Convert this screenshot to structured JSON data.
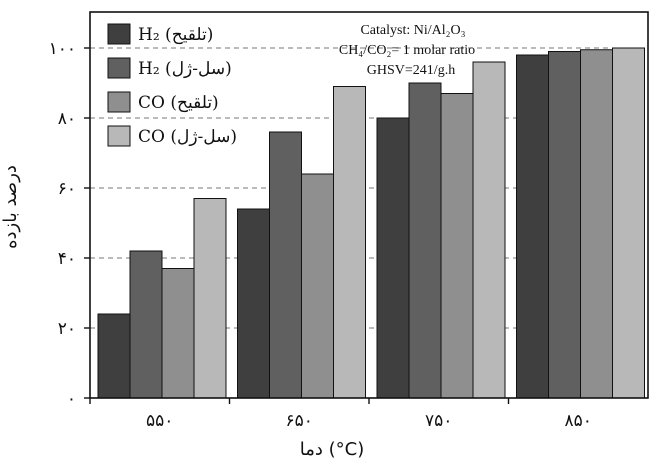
{
  "chart_data": {
    "type": "bar",
    "xlabel": "دما (°C)",
    "ylabel": "درصد بازده",
    "ylim": [
      0,
      100
    ],
    "yticks": [
      {
        "value": 0,
        "label": "۰"
      },
      {
        "value": 20,
        "label": "۲۰"
      },
      {
        "value": 40,
        "label": "۴۰"
      },
      {
        "value": 60,
        "label": "۶۰"
      },
      {
        "value": 80,
        "label": "۸۰"
      },
      {
        "value": 100,
        "label": "۱۰۰"
      }
    ],
    "categories": [
      "۵۵۰",
      "۶۵۰",
      "۷۵۰",
      "۸۵۰"
    ],
    "series": [
      {
        "name": "H₂ (تلقیح)",
        "color": "#3f3f3f",
        "values": [
          24,
          54,
          80,
          98
        ]
      },
      {
        "name": "H₂ (سل-ژل)",
        "color": "#606060",
        "values": [
          42,
          76,
          90,
          99
        ]
      },
      {
        "name": "CO (تلقیح)",
        "color": "#8f8f8f",
        "values": [
          37,
          64,
          87,
          99.5
        ]
      },
      {
        "name": "CO (سل-ژل)",
        "color": "#b8b8b8",
        "values": [
          57,
          89,
          96,
          100
        ]
      }
    ],
    "reference_lines": [
      100,
      80,
      60,
      40,
      20
    ],
    "annotation": {
      "line1": "Catalyst: Ni/Al₂O₃",
      "line2": "CH₄/CO₂= 1 molar ratio",
      "line3": "GHSV=241/g.h"
    },
    "legend_position": "top-left",
    "grid": false
  }
}
